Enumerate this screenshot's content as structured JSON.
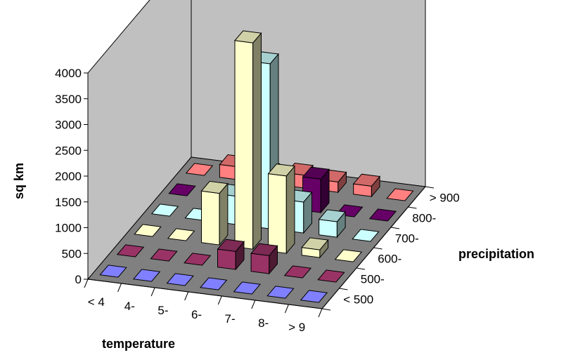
{
  "chart_data": {
    "type": "bar",
    "subtype": "3d-column",
    "title": "",
    "ylabel": "sq km",
    "xlabel": "temperature",
    "zlabel": "precipitation",
    "ylim": [
      0,
      4000
    ],
    "yticks": [
      "0",
      "500",
      "1000",
      "1500",
      "2000",
      "2500",
      "3000",
      "3500",
      "4000"
    ],
    "categories": [
      "< 4",
      "4-",
      "5-",
      "6-",
      "7-",
      "8-",
      "> 9"
    ],
    "series": [
      {
        "name": "< 500",
        "color": "#8080ff",
        "values": [
          0,
          0,
          0,
          0,
          0,
          0,
          0
        ]
      },
      {
        "name": "500-",
        "color": "#993366",
        "values": [
          0,
          0,
          0,
          350,
          350,
          0,
          0
        ]
      },
      {
        "name": "600-",
        "color": "#ffffcc",
        "values": [
          0,
          0,
          1000,
          4000,
          1500,
          150,
          0
        ]
      },
      {
        "name": "700-",
        "color": "#ccffff",
        "values": [
          0,
          0,
          550,
          3200,
          600,
          300,
          0
        ]
      },
      {
        "name": "800-",
        "color": "#660066",
        "values": [
          0,
          0,
          0,
          0,
          650,
          0,
          0
        ]
      },
      {
        "name": "> 900",
        "color": "#ff8080",
        "values": [
          0,
          250,
          200,
          250,
          200,
          200,
          0
        ]
      }
    ],
    "wall_color": "#c0c0c0",
    "floor_color": "#808080",
    "grid": false
  }
}
